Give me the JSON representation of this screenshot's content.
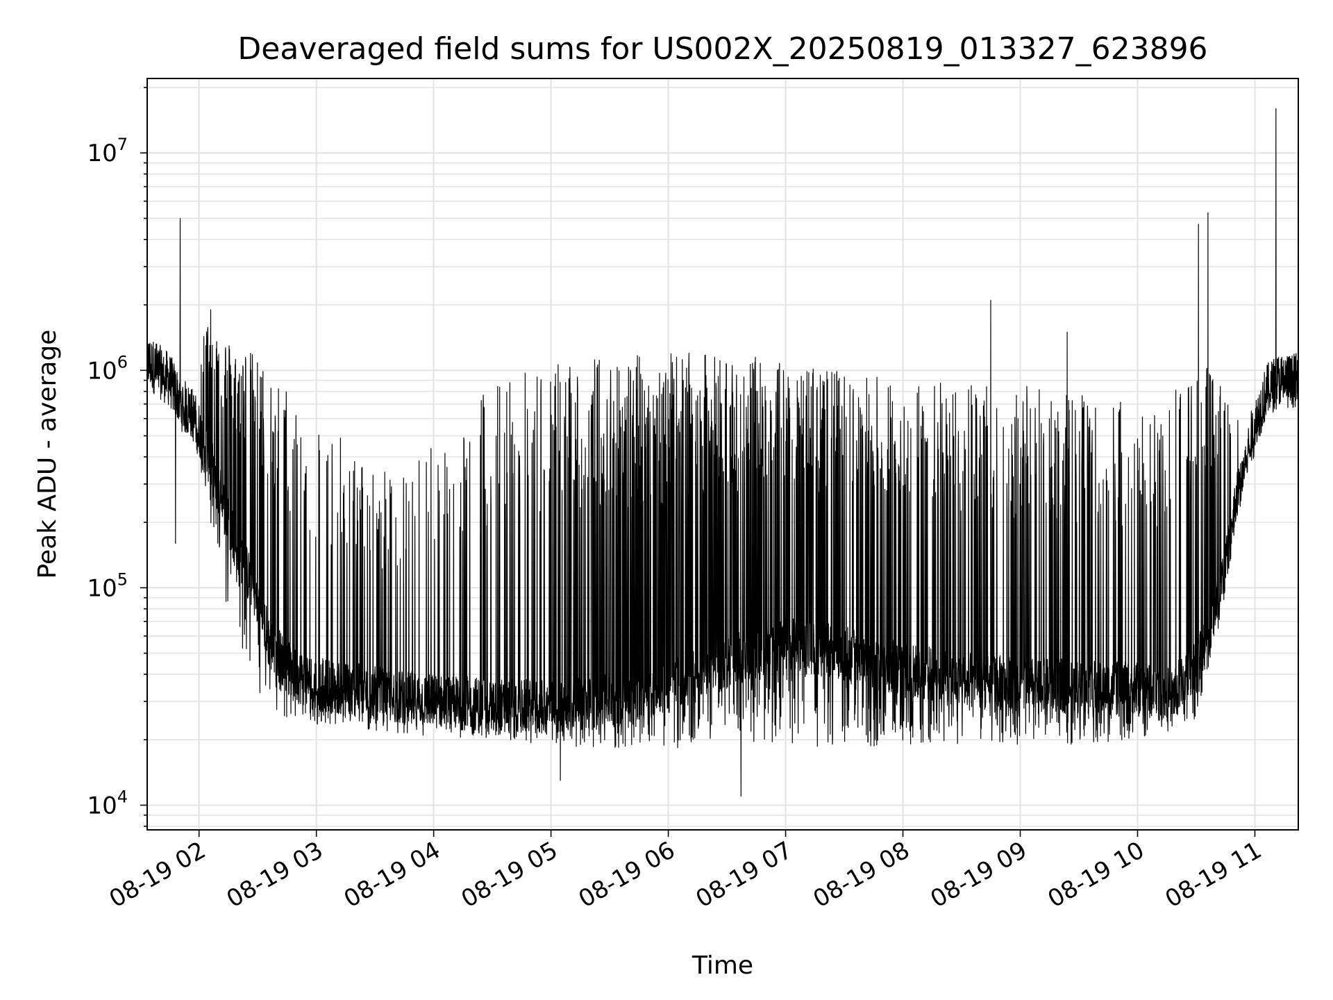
{
  "chart_data": {
    "type": "line",
    "title": "Deaveraged field sums for US002X_20250819_013327_623896",
    "xlabel": "Time",
    "ylabel": "Peak ADU - average",
    "yscale": "log",
    "ylim": [
      7700,
      22000000
    ],
    "xlim_hours": [
      1.558,
      11.37
    ],
    "grid": true,
    "line_color": "#000000",
    "x_ticks": [
      {
        "hour": 2,
        "label": "08-19 02"
      },
      {
        "hour": 3,
        "label": "08-19 03"
      },
      {
        "hour": 4,
        "label": "08-19 04"
      },
      {
        "hour": 5,
        "label": "08-19 05"
      },
      {
        "hour": 6,
        "label": "08-19 06"
      },
      {
        "hour": 7,
        "label": "08-19 07"
      },
      {
        "hour": 8,
        "label": "08-19 08"
      },
      {
        "hour": 9,
        "label": "08-19 09"
      },
      {
        "hour": 10,
        "label": "08-19 10"
      },
      {
        "hour": 11,
        "label": "08-19 11"
      }
    ],
    "y_ticks": [
      {
        "value": 10000,
        "base": "10",
        "exp": "4"
      },
      {
        "value": 100000,
        "base": "10",
        "exp": "5"
      },
      {
        "value": 1000000,
        "base": "10",
        "exp": "6"
      },
      {
        "value": 10000000,
        "base": "10",
        "exp": "7"
      }
    ],
    "envelope": {
      "hours": [
        1.56,
        1.65,
        1.75,
        1.85,
        1.95,
        2.05,
        2.15,
        2.25,
        2.4,
        2.6,
        2.8,
        3.0,
        3.3,
        3.6,
        4.0,
        4.5,
        5.0,
        5.5,
        6.0,
        6.5,
        7.0,
        7.5,
        8.0,
        8.5,
        9.0,
        9.5,
        10.0,
        10.3,
        10.5,
        10.6,
        10.7,
        10.8,
        10.9,
        11.0,
        11.1,
        11.2,
        11.3,
        11.37
      ],
      "baseline": [
        1100000,
        1000000,
        900000,
        700000,
        620000,
        450000,
        300000,
        200000,
        120000,
        55000,
        40000,
        36000,
        34000,
        32000,
        30000,
        29000,
        28000,
        30000,
        35000,
        45000,
        55000,
        50000,
        42000,
        38000,
        36000,
        35000,
        34000,
        32000,
        45000,
        60000,
        90000,
        180000,
        350000,
        550000,
        800000,
        900000,
        900000,
        900000
      ],
      "floor": [
        900000,
        800000,
        700000,
        550000,
        500000,
        250000,
        120000,
        60000,
        40000,
        28000,
        24000,
        23000,
        22000,
        21000,
        20000,
        20000,
        19000,
        18000,
        18000,
        20000,
        19000,
        18000,
        18500,
        19000,
        19000,
        19000,
        20000,
        22000,
        25000,
        40000,
        60000,
        130000,
        280000,
        450000,
        650000,
        700000,
        650000,
        700000
      ],
      "top": [
        1300000,
        1400000,
        1300000,
        1000000,
        800000,
        1700000,
        1600000,
        1400000,
        1300000,
        1000000,
        800000,
        600000,
        450000,
        350000,
        500000,
        900000,
        1100000,
        1200000,
        1200000,
        1200000,
        1100000,
        1000000,
        900000,
        900000,
        850000,
        800000,
        700000,
        800000,
        1000000,
        1200000,
        900000,
        700000,
        600000,
        800000,
        1050000,
        1100000,
        1100000,
        1050000
      ],
      "spike_prob": [
        0.0,
        0.05,
        0.05,
        0.05,
        0.05,
        0.6,
        0.6,
        0.55,
        0.5,
        0.4,
        0.3,
        0.25,
        0.25,
        0.2,
        0.15,
        0.25,
        0.35,
        0.6,
        0.75,
        0.7,
        0.55,
        0.5,
        0.45,
        0.45,
        0.4,
        0.35,
        0.3,
        0.3,
        0.4,
        0.5,
        0.3,
        0.1,
        0.0,
        0.0,
        0.0,
        0.0,
        0.0,
        0.0
      ]
    },
    "notable_peaks": [
      {
        "hour": 1.84,
        "value": 5000000
      },
      {
        "hour": 1.8,
        "value": 160000
      },
      {
        "hour": 2.1,
        "value": 1900000
      },
      {
        "hour": 8.75,
        "value": 2100000
      },
      {
        "hour": 10.52,
        "value": 4700000
      },
      {
        "hour": 10.6,
        "value": 5300000
      },
      {
        "hour": 11.18,
        "value": 16000000
      },
      {
        "hour": 6.62,
        "value": 11000
      },
      {
        "hour": 5.08,
        "value": 13000
      },
      {
        "hour": 9.4,
        "value": 1500000
      }
    ]
  }
}
